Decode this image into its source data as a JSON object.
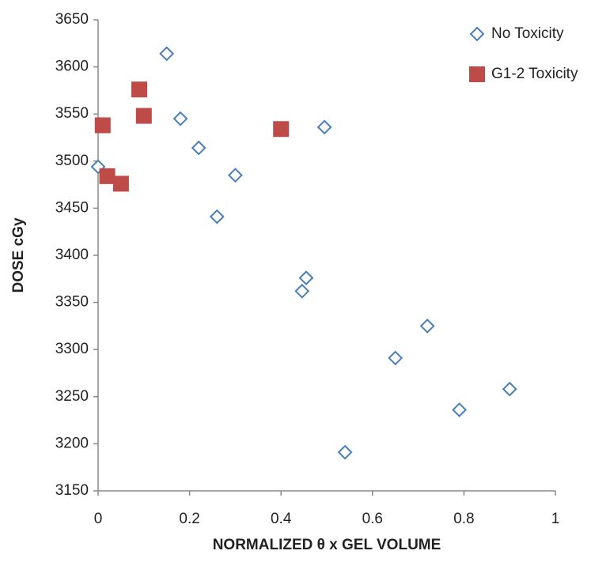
{
  "chart_data": {
    "type": "scatter",
    "x_label": "NORMALIZED θ x  GEL VOLUME",
    "y_label": "DOSE cGy",
    "xlim": [
      0,
      1
    ],
    "xticks": [
      0,
      0.2,
      0.4,
      0.6,
      0.8,
      1
    ],
    "ylim": [
      3150,
      3650
    ],
    "yticks": [
      3150,
      3200,
      3250,
      3300,
      3350,
      3400,
      3450,
      3500,
      3550,
      3600,
      3650
    ],
    "grid": false,
    "legend": "top-right",
    "series": [
      {
        "name": "No Toxicity",
        "color": "#4a7ebb",
        "marker": "diamond",
        "x": [
          0,
          0.15,
          0.18,
          0.22,
          0.3,
          0.26,
          0.495,
          0.455,
          0.446,
          0.54,
          0.65,
          0.72,
          0.79,
          0.9
        ],
        "values": [
          3494,
          3614,
          3545,
          3514,
          3485,
          3441,
          3536,
          3376,
          3362,
          3191,
          3291,
          3325,
          3236,
          3258
        ]
      },
      {
        "name": "G1-2 Toxicity",
        "color": "#be4b48",
        "marker": "square",
        "x": [
          0.01,
          0.02,
          0.05,
          0.09,
          0.1,
          0.4
        ],
        "values": [
          3538,
          3484,
          3476,
          3576,
          3548,
          3534
        ]
      }
    ]
  }
}
